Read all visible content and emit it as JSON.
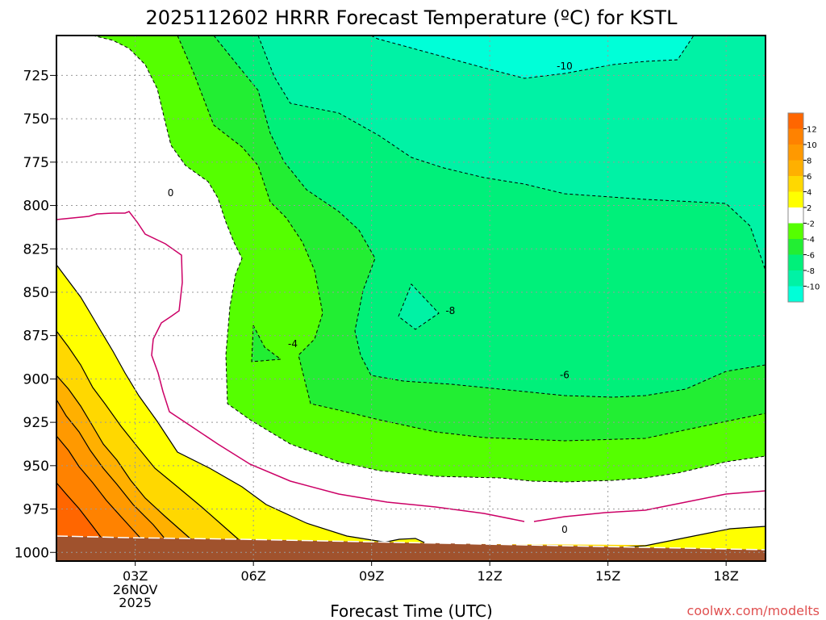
{
  "title": "2025112602 HRRR Forecast Temperature (ºC) for KSTL",
  "credit": "coolwx.com/modelts",
  "credit_color": "#e05050",
  "chart_data": {
    "type": "contour",
    "title": "2025112602 HRRR Forecast Temperature (ºC) for KSTL",
    "xlabel": "Forecast Time (UTC)",
    "ylabel": "",
    "x_ticks": [
      "03Z",
      "06Z",
      "09Z",
      "12Z",
      "15Z",
      "18Z"
    ],
    "x_tick_date": [
      "26NOV",
      "2025"
    ],
    "xlim_hours": [
      1,
      19
    ],
    "y_ticks": [
      725,
      750,
      775,
      800,
      825,
      850,
      875,
      900,
      925,
      950,
      975,
      1000
    ],
    "ylim_hPa": [
      1005,
      702
    ],
    "grid": true,
    "colorbar": {
      "tick_labels": [
        "12",
        "10",
        "8",
        "6",
        "4",
        "2",
        "-2",
        "-4",
        "-6",
        "-8",
        "-10"
      ],
      "bands": [
        {
          "range": [
            12,
            14
          ],
          "color": "#ff6600"
        },
        {
          "range": [
            10,
            12
          ],
          "color": "#ff8200"
        },
        {
          "range": [
            8,
            10
          ],
          "color": "#ff9900"
        },
        {
          "range": [
            6,
            8
          ],
          "color": "#ffb000"
        },
        {
          "range": [
            4,
            6
          ],
          "color": "#ffd800"
        },
        {
          "range": [
            2,
            4
          ],
          "color": "#ffff00"
        },
        {
          "range": [
            -2,
            2
          ],
          "color": "#ffffff"
        },
        {
          "range": [
            -4,
            -2
          ],
          "color": "#55ff00"
        },
        {
          "range": [
            -6,
            -4
          ],
          "color": "#22ee33"
        },
        {
          "range": [
            -8,
            -6
          ],
          "color": "#00f07a"
        },
        {
          "range": [
            -10,
            -8
          ],
          "color": "#00f2a5"
        },
        {
          "range": [
            -12,
            -10
          ],
          "color": "#00ffd8"
        }
      ]
    },
    "contour_labels": [
      {
        "text": "-10",
        "x": 13.9,
        "y": 720
      },
      {
        "text": "0",
        "x": 3.9,
        "y": 793
      },
      {
        "text": "-8",
        "x": 11.0,
        "y": 861
      },
      {
        "text": "-4",
        "x": 7.0,
        "y": 880
      },
      {
        "text": "-6",
        "x": 13.9,
        "y": 898
      },
      {
        "text": "0",
        "x": 13.9,
        "y": 987
      }
    ],
    "surface_color": "#a0522d",
    "zero_line_color": "#cc0066"
  }
}
